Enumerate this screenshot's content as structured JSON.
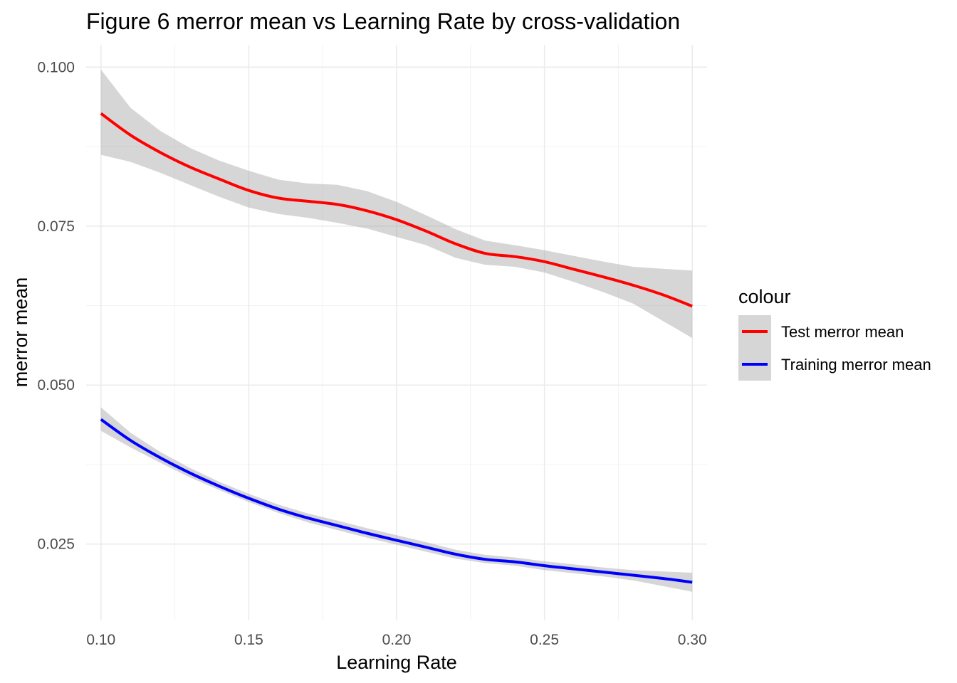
{
  "chart_data": {
    "type": "line",
    "title": "Figure 6 merror mean vs Learning Rate by cross-validation",
    "xlabel": "Learning Rate",
    "ylabel": "merror mean",
    "xlim": [
      0.095,
      0.305
    ],
    "ylim": [
      0.013,
      0.1035
    ],
    "x_ticks": [
      0.1,
      0.15,
      0.2,
      0.25,
      0.3
    ],
    "x_tick_labels": [
      "0.10",
      "0.15",
      "0.20",
      "0.25",
      "0.30"
    ],
    "y_ticks": [
      0.025,
      0.05,
      0.075,
      0.1
    ],
    "y_tick_labels": [
      "0.025",
      "0.050",
      "0.075",
      "0.100"
    ],
    "grid": true,
    "legend": {
      "title": "colour",
      "position": "right",
      "items": [
        {
          "label": "Test merror mean",
          "color": "#ff0000"
        },
        {
          "label": "Training merror mean",
          "color": "#0000ff"
        }
      ]
    },
    "band_color": "#999999",
    "band_opacity": 0.4,
    "series": [
      {
        "name": "Test merror mean",
        "color": "#ff0000",
        "x": [
          0.1,
          0.11,
          0.12,
          0.13,
          0.14,
          0.15,
          0.16,
          0.17,
          0.18,
          0.19,
          0.2,
          0.21,
          0.22,
          0.23,
          0.24,
          0.25,
          0.26,
          0.27,
          0.28,
          0.29,
          0.3
        ],
        "y": [
          0.0927,
          0.0893,
          0.0866,
          0.0843,
          0.0824,
          0.0806,
          0.0794,
          0.0789,
          0.0784,
          0.0774,
          0.076,
          0.0742,
          0.0722,
          0.0707,
          0.0702,
          0.0694,
          0.0682,
          0.067,
          0.0657,
          0.0642,
          0.0624
        ],
        "lower": [
          0.0862,
          0.0851,
          0.0834,
          0.0815,
          0.0796,
          0.0779,
          0.0769,
          0.0763,
          0.0755,
          0.0746,
          0.0733,
          0.072,
          0.07,
          0.0689,
          0.0686,
          0.0677,
          0.0662,
          0.0646,
          0.0628,
          0.0601,
          0.0574
        ],
        "upper": [
          0.0996,
          0.0936,
          0.09,
          0.0873,
          0.0853,
          0.0837,
          0.0823,
          0.0817,
          0.0815,
          0.0805,
          0.0788,
          0.0767,
          0.0745,
          0.0727,
          0.072,
          0.0712,
          0.0703,
          0.0694,
          0.0686,
          0.0683,
          0.068
        ]
      },
      {
        "name": "Training merror mean",
        "color": "#0000ff",
        "x": [
          0.1,
          0.11,
          0.12,
          0.13,
          0.14,
          0.15,
          0.16,
          0.17,
          0.18,
          0.19,
          0.2,
          0.21,
          0.22,
          0.23,
          0.24,
          0.25,
          0.26,
          0.27,
          0.28,
          0.29,
          0.3
        ],
        "y": [
          0.0446,
          0.0413,
          0.0386,
          0.0362,
          0.0341,
          0.0322,
          0.0305,
          0.0291,
          0.0279,
          0.0267,
          0.0256,
          0.0245,
          0.0234,
          0.0226,
          0.0222,
          0.0216,
          0.0211,
          0.0206,
          0.0201,
          0.0196,
          0.019
        ],
        "lower": [
          0.0428,
          0.0402,
          0.0378,
          0.0355,
          0.0335,
          0.0316,
          0.0299,
          0.0284,
          0.0272,
          0.026,
          0.0249,
          0.0238,
          0.0227,
          0.022,
          0.0216,
          0.0209,
          0.0204,
          0.0199,
          0.0193,
          0.0184,
          0.0175
        ],
        "upper": [
          0.0465,
          0.0425,
          0.0395,
          0.037,
          0.0348,
          0.0329,
          0.0312,
          0.0298,
          0.0287,
          0.0275,
          0.0264,
          0.0253,
          0.0241,
          0.0233,
          0.0229,
          0.0223,
          0.0218,
          0.0213,
          0.0209,
          0.0207,
          0.0205
        ]
      }
    ]
  }
}
